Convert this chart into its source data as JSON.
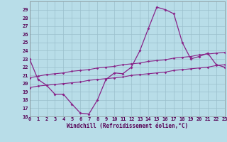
{
  "xlabel": "Windchill (Refroidissement éolien,°C)",
  "background_color": "#b8dde8",
  "grid_color": "#9bbfcc",
  "line_color": "#882288",
  "x": [
    0,
    1,
    2,
    3,
    4,
    5,
    6,
    7,
    8,
    9,
    10,
    11,
    12,
    13,
    14,
    15,
    16,
    17,
    18,
    19,
    20,
    21,
    22,
    23
  ],
  "y_main": [
    23.0,
    20.5,
    19.8,
    18.7,
    18.7,
    17.5,
    16.4,
    16.3,
    18.0,
    20.5,
    21.3,
    21.2,
    22.0,
    24.0,
    26.7,
    29.3,
    29.0,
    28.5,
    25.0,
    23.0,
    23.3,
    23.7,
    22.3,
    22.0
  ],
  "y_upper": [
    20.7,
    20.9,
    21.1,
    21.2,
    21.3,
    21.5,
    21.6,
    21.7,
    21.9,
    22.0,
    22.1,
    22.3,
    22.4,
    22.5,
    22.7,
    22.8,
    22.9,
    23.1,
    23.2,
    23.3,
    23.5,
    23.6,
    23.7,
    23.8
  ],
  "y_lower": [
    19.5,
    19.7,
    19.8,
    19.9,
    20.0,
    20.1,
    20.2,
    20.4,
    20.5,
    20.6,
    20.7,
    20.8,
    21.0,
    21.1,
    21.2,
    21.3,
    21.4,
    21.6,
    21.7,
    21.8,
    21.9,
    22.0,
    22.2,
    22.3
  ],
  "ylim": [
    16,
    30
  ],
  "xlim": [
    0,
    23
  ],
  "yticks": [
    16,
    17,
    18,
    19,
    20,
    21,
    22,
    23,
    24,
    25,
    26,
    27,
    28,
    29
  ],
  "xticks": [
    0,
    1,
    2,
    3,
    4,
    5,
    6,
    7,
    8,
    9,
    10,
    11,
    12,
    13,
    14,
    15,
    16,
    17,
    18,
    19,
    20,
    21,
    22,
    23
  ]
}
